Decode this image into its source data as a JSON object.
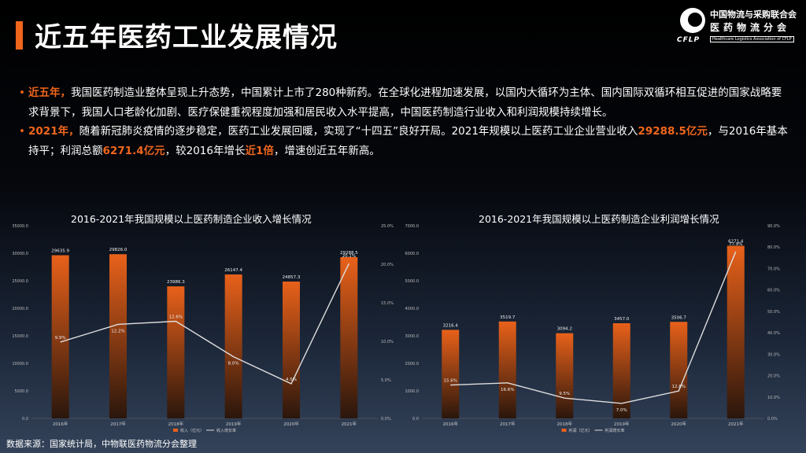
{
  "slide": {
    "title": "近五年医药工业发展情况",
    "source": "数据来源：国家统计局，中物联医药物流分会整理"
  },
  "logo": {
    "abbr": "CFLP",
    "line1": "中国物流与采购联合会",
    "line2": "医药物流分会",
    "line3": "Healthcare Logistics Association of CFLP"
  },
  "bullets": [
    {
      "lead": "近五年，",
      "text": "我国医药制造业整体呈现上升态势，中国累计上市了280种新药。在全球化进程加速发展，以国内大循环为主体、国内国际双循环相互促进的国家战略要求背景下，我国人口老龄化加剧、医疗保健重视程度加强和居民收入水平提高，中国医药制造行业收入和利润规模持续增长。"
    },
    {
      "lead": "2021年，",
      "t1": "随着新冠肺炎疫情的逐步稳定，医药工业发展回暖，实现了“十四五”良好开局。2021年规模以上医药工业企业营业收入",
      "h1": "29288.5亿元",
      "t2": "，与2016年基本持平；利润总额",
      "h2": "6271.4亿元",
      "t3": "，较2016年增长",
      "h3": "近1倍",
      "t4": "，增速创近五年新高。"
    }
  ],
  "chart_data": [
    {
      "type": "bar",
      "title": "2016-2021年我国规模以上医药制造企业收入增长情况",
      "categories": [
        "2016年",
        "2017年",
        "2018年",
        "2019年",
        "2020年",
        "2021年"
      ],
      "series": [
        {
          "name": "收入（亿元）",
          "type": "bar",
          "axis": "left",
          "values": [
            29635.9,
            29826.0,
            23986.3,
            26147.4,
            24857.3,
            29288.5
          ],
          "labels": [
            "29635.9",
            "29826.0",
            "23986.3",
            "26147.4",
            "24857.3",
            "29288.5"
          ]
        },
        {
          "name": "收入增长率",
          "type": "line",
          "axis": "right",
          "values": [
            9.9,
            12.2,
            12.6,
            8.0,
            4.5,
            20.1
          ],
          "labels": [
            "9.9%",
            "12.2%",
            "12.6%",
            "8.0%",
            "4.5%",
            "20.1%"
          ]
        }
      ],
      "yleft": {
        "min": 0,
        "max": 35000,
        "ticks": [
          "0.0",
          "5000.0",
          "10000.0",
          "15000.0",
          "20000.0",
          "25000.0",
          "30000.0",
          "35000.0"
        ]
      },
      "yright": {
        "min": 0,
        "max": 25,
        "ticks": [
          "0.0%",
          "5.0%",
          "10.0%",
          "15.0%",
          "20.0%",
          "25.0%"
        ]
      },
      "colors": {
        "bar_top": "#e8611a",
        "bar_bottom": "#2a160c",
        "line": "#dddddd"
      },
      "legend_position": "bottom"
    },
    {
      "type": "bar",
      "title": "2016-2021年我国规模以上医药制造企业利润增长情况",
      "categories": [
        "2016年",
        "2017年",
        "2018年",
        "2019年",
        "2020年",
        "2021年"
      ],
      "series": [
        {
          "name": "利润（亿元）",
          "type": "bar",
          "axis": "left",
          "values": [
            3216.4,
            3519.7,
            3094.2,
            3457.0,
            3506.7,
            6271.4
          ],
          "labels": [
            "3216.4",
            "3519.7",
            "3094.2",
            "3457.0",
            "3506.7",
            "6271.4"
          ]
        },
        {
          "name": "利润增长率",
          "type": "line",
          "axis": "right",
          "values": [
            15.6,
            16.6,
            9.5,
            7.0,
            12.8,
            77.9
          ],
          "labels": [
            "15.6%",
            "16.6%",
            "9.5%",
            "7.0%",
            "12.8%",
            "77.9%"
          ]
        }
      ],
      "yleft": {
        "min": 0,
        "max": 7000,
        "ticks": [
          "0.0",
          "1000.0",
          "2000.0",
          "3000.0",
          "4000.0",
          "5000.0",
          "6000.0",
          "7000.0"
        ]
      },
      "yright": {
        "min": 0,
        "max": 90,
        "ticks": [
          "0.0%",
          "10.0%",
          "20.0%",
          "30.0%",
          "40.0%",
          "50.0%",
          "60.0%",
          "70.0%",
          "80.0%",
          "90.0%"
        ]
      },
      "colors": {
        "bar_top": "#e8611a",
        "bar_bottom": "#2a160c",
        "line": "#dddddd"
      },
      "legend_position": "bottom"
    }
  ]
}
